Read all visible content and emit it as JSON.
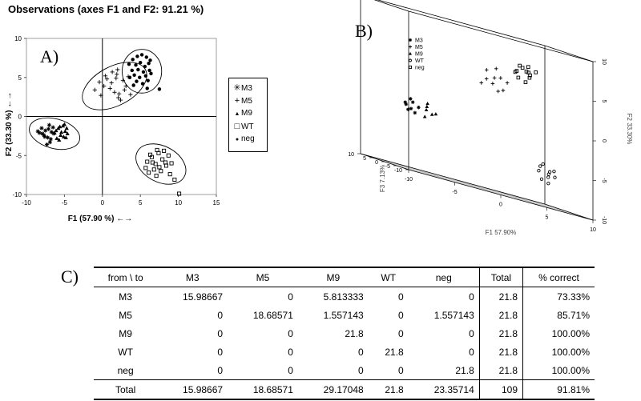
{
  "title": "Observations (axes F1 and F2: 91.21 %)",
  "panel_labels": {
    "a": "A)",
    "b": "B)",
    "c": "C)"
  },
  "chart_data": [
    {
      "type": "scatter",
      "panel": "A)",
      "title": "Observations (axes F1 and F2: 91.21 %)",
      "xlabel": "F1 (57.90 %) ←→",
      "ylabel": "F2 (33.30 %) ←→",
      "xlim": [
        -10,
        15
      ],
      "ylim": [
        -10,
        10
      ],
      "xticks": [
        -10,
        -5,
        0,
        5,
        10,
        15
      ],
      "yticks": [
        -10,
        -5,
        0,
        5,
        10
      ],
      "legend_placement": "right",
      "series": [
        {
          "name": "M3",
          "marker": "asterisk",
          "points": [
            [
              -8.3,
              -2.1
            ],
            [
              -8.0,
              -1.5
            ],
            [
              -7.7,
              -2.4
            ],
            [
              -7.5,
              -1.8
            ],
            [
              -7.2,
              -2.7
            ],
            [
              -7.0,
              -1.1
            ],
            [
              -6.9,
              -3.3
            ],
            [
              -6.7,
              -2.0
            ],
            [
              -7.6,
              -2.6
            ],
            [
              -6.4,
              -2.2
            ],
            [
              -8.5,
              -1.9
            ],
            [
              -7.1,
              -1.6
            ],
            [
              -6.8,
              -2.9
            ],
            [
              -7.9,
              -2.2
            ],
            [
              -6.5,
              -1.4
            ],
            [
              -7.3,
              -3.6
            ]
          ]
        },
        {
          "name": "M5",
          "marker": "plus",
          "points": [
            [
              0.4,
              5.2
            ],
            [
              1.3,
              5.7
            ],
            [
              2.0,
              6.0
            ],
            [
              1.8,
              4.9
            ],
            [
              1.0,
              3.6
            ],
            [
              2.4,
              2.1
            ],
            [
              0.6,
              4.8
            ],
            [
              1.6,
              3.1
            ],
            [
              2.9,
              3.4
            ],
            [
              3.7,
              2.8
            ],
            [
              2.7,
              4.6
            ],
            [
              3.4,
              5.1
            ],
            [
              2.2,
              2.9
            ],
            [
              1.2,
              4.3
            ],
            [
              -1.0,
              3.4
            ],
            [
              0.2,
              3.9
            ],
            [
              -0.4,
              4.4
            ],
            [
              2.1,
              2.4
            ],
            [
              -0.2,
              2.7
            ],
            [
              1.9,
              5.4
            ],
            [
              3.1,
              3.9
            ]
          ]
        },
        {
          "name": "M9",
          "marker": "triangle",
          "points": [
            [
              -6.3,
              -2.1
            ],
            [
              -5.8,
              -1.5
            ],
            [
              -5.5,
              -2.4
            ],
            [
              -5.2,
              -1.2
            ],
            [
              -4.9,
              -1.9
            ],
            [
              -6.0,
              -2.8
            ],
            [
              -5.4,
              -2.0
            ],
            [
              -4.7,
              -1.5
            ],
            [
              -5.7,
              -3.0
            ],
            [
              -5.1,
              -2.6
            ],
            [
              -4.6,
              -2.2
            ],
            [
              -6.1,
              -1.8
            ],
            [
              -5.0,
              -1.0
            ],
            [
              -5.6,
              -1.3
            ],
            [
              -4.8,
              -2.7
            ]
          ]
        },
        {
          "name": "WT",
          "marker": "square",
          "points": [
            [
              5.9,
              -5.8
            ],
            [
              6.5,
              -5.2
            ],
            [
              7.0,
              -6.1
            ],
            [
              7.4,
              -4.7
            ],
            [
              6.8,
              -6.8
            ],
            [
              7.9,
              -5.5
            ],
            [
              8.4,
              -6.3
            ],
            [
              7.2,
              -4.3
            ],
            [
              6.1,
              -7.2
            ],
            [
              8.7,
              -5.0
            ],
            [
              7.7,
              -7.0
            ],
            [
              6.6,
              -5.9
            ],
            [
              8.1,
              -4.4
            ],
            [
              7.5,
              -6.5
            ],
            [
              9.1,
              -6.0
            ],
            [
              6.3,
              -4.9
            ],
            [
              8.9,
              -7.4
            ],
            [
              5.7,
              -6.6
            ],
            [
              7.1,
              -7.6
            ],
            [
              9.5,
              -8.1
            ],
            [
              10.1,
              -9.9
            ],
            [
              8.3,
              -5.9
            ]
          ]
        },
        {
          "name": "neg",
          "marker": "filled-circle",
          "points": [
            [
              4.0,
              7.3
            ],
            [
              4.6,
              7.7
            ],
            [
              5.2,
              7.9
            ],
            [
              5.8,
              7.6
            ],
            [
              6.3,
              7.2
            ],
            [
              4.4,
              6.6
            ],
            [
              5.0,
              6.9
            ],
            [
              5.6,
              6.4
            ],
            [
              6.1,
              6.8
            ],
            [
              3.9,
              5.9
            ],
            [
              4.7,
              6.0
            ],
            [
              5.4,
              5.7
            ],
            [
              6.2,
              5.9
            ],
            [
              4.2,
              5.3
            ],
            [
              4.9,
              5.0
            ],
            [
              5.7,
              5.2
            ],
            [
              6.4,
              5.5
            ],
            [
              3.6,
              5.0
            ],
            [
              4.5,
              4.5
            ],
            [
              5.3,
              4.2
            ],
            [
              6.0,
              4.6
            ],
            [
              3.5,
              6.7
            ],
            [
              4.1,
              4.0
            ],
            [
              5.9,
              3.6
            ],
            [
              7.5,
              3.5
            ]
          ]
        }
      ],
      "ellipses": [
        {
          "group": "M3/M9",
          "cx": -6.3,
          "cy": -2.2,
          "rx": 3.4,
          "ry": 1.9,
          "angle": -15
        },
        {
          "group": "M5",
          "cx": 1.6,
          "cy": 3.9,
          "rx": 4.6,
          "ry": 2.5,
          "angle": 28
        },
        {
          "group": "neg",
          "cx": 5.2,
          "cy": 5.8,
          "rx": 2.6,
          "ry": 2.8,
          "angle": 0
        },
        {
          "group": "WT",
          "cx": 7.7,
          "cy": -6.1,
          "rx": 3.5,
          "ry": 2.3,
          "angle": -28
        }
      ]
    },
    {
      "type": "scatter",
      "panel": "B)",
      "xlabel": "F1 57.90%",
      "ylabel": "F2 33.30%",
      "zlabel": "F3 7.13%",
      "xticks": [
        -10,
        -5,
        0,
        5,
        10
      ],
      "yticks": [
        -10,
        -5,
        0,
        5,
        10
      ],
      "zticks": [
        -10,
        -5,
        0,
        5,
        10
      ],
      "tick_labels": {
        "y": [
          "10",
          "5",
          "0",
          "-5",
          "-10"
        ]
      },
      "legend_placement": "top-left",
      "series": [
        {
          "name": "M3",
          "marker": "asterisk",
          "points": [
            [
              -7.5,
              -1.8,
              1.0
            ],
            [
              -7.0,
              -2.4,
              0.5
            ],
            [
              -6.8,
              -1.2,
              1.5
            ],
            [
              -7.8,
              -2.0,
              -0.5
            ],
            [
              -6.5,
              -2.8,
              0.8
            ],
            [
              -7.2,
              -1.5,
              -1.0
            ],
            [
              -6.0,
              -2.0,
              1.2
            ],
            [
              -7.4,
              -2.6,
              0.2
            ]
          ]
        },
        {
          "name": "M5",
          "marker": "plus",
          "points": [
            [
              0.8,
              4.0,
              -1.0
            ],
            [
              1.6,
              3.6,
              -0.5
            ],
            [
              2.2,
              4.6,
              -1.5
            ],
            [
              1.2,
              5.1,
              0.5
            ],
            [
              2.6,
              3.1,
              -1.0
            ],
            [
              0.5,
              3.3,
              0.0
            ],
            [
              1.9,
              5.6,
              -0.8
            ],
            [
              3.0,
              4.2,
              -1.2
            ],
            [
              2.4,
              2.8,
              0.3
            ],
            [
              1.4,
              4.4,
              -2.0
            ]
          ]
        },
        {
          "name": "M9",
          "marker": "triangle",
          "points": [
            [
              -5.6,
              -2.0,
              -0.5
            ],
            [
              -5.2,
              -1.6,
              0.8
            ],
            [
              -4.8,
              -2.4,
              0.2
            ],
            [
              -5.9,
              -2.9,
              -1.0
            ],
            [
              -5.0,
              -1.2,
              1.3
            ],
            [
              -4.6,
              -2.2,
              -0.6
            ]
          ]
        },
        {
          "name": "WT",
          "marker": "open-circle",
          "points": [
            [
              6.6,
              -5.8,
              -0.5
            ],
            [
              7.1,
              -5.2,
              0.8
            ],
            [
              7.5,
              -6.3,
              -1.0
            ],
            [
              8.0,
              -5.6,
              0.3
            ],
            [
              7.3,
              -6.8,
              1.0
            ],
            [
              8.4,
              -6.1,
              -0.3
            ],
            [
              6.8,
              -4.8,
              -1.5
            ],
            [
              7.9,
              -7.1,
              0.5
            ],
            [
              8.7,
              -5.4,
              1.2
            ],
            [
              7.6,
              -5.9,
              -0.8
            ]
          ]
        },
        {
          "name": "neg",
          "marker": "square",
          "points": [
            [
              4.6,
              6.0,
              1.0
            ],
            [
              5.1,
              6.6,
              0.5
            ],
            [
              5.6,
              5.6,
              -0.5
            ],
            [
              4.9,
              5.2,
              1.5
            ],
            [
              5.8,
              6.9,
              0.8
            ],
            [
              4.4,
              6.8,
              -1.0
            ],
            [
              6.1,
              5.9,
              1.2
            ],
            [
              5.3,
              4.9,
              0.0
            ],
            [
              5.0,
              6.3,
              -1.5
            ],
            [
              5.7,
              6.2,
              0.3
            ],
            [
              4.7,
              5.8,
              2.0
            ],
            [
              6.3,
              6.5,
              -0.4
            ]
          ]
        }
      ]
    },
    {
      "type": "table",
      "panel": "C)",
      "columns": [
        "from \\ to",
        "M3",
        "M5",
        "M9",
        "WT",
        "neg",
        "Total",
        "% correct"
      ],
      "rows": [
        [
          "M3",
          "15.98667",
          "0",
          "5.813333",
          "0",
          "0",
          "21.8",
          "73.33%"
        ],
        [
          "M5",
          "0",
          "18.68571",
          "1.557143",
          "0",
          "1.557143",
          "21.8",
          "85.71%"
        ],
        [
          "M9",
          "0",
          "0",
          "21.8",
          "0",
          "0",
          "21.8",
          "100.00%"
        ],
        [
          "WT",
          "0",
          "0",
          "0",
          "21.8",
          "0",
          "21.8",
          "100.00%"
        ],
        [
          "neg",
          "0",
          "0",
          "0",
          "0",
          "21.8",
          "21.8",
          "100.00%"
        ]
      ],
      "total_row": [
        "Total",
        "15.98667",
        "18.68571",
        "29.17048",
        "21.8",
        "23.35714",
        "109",
        "91.81%"
      ]
    }
  ]
}
